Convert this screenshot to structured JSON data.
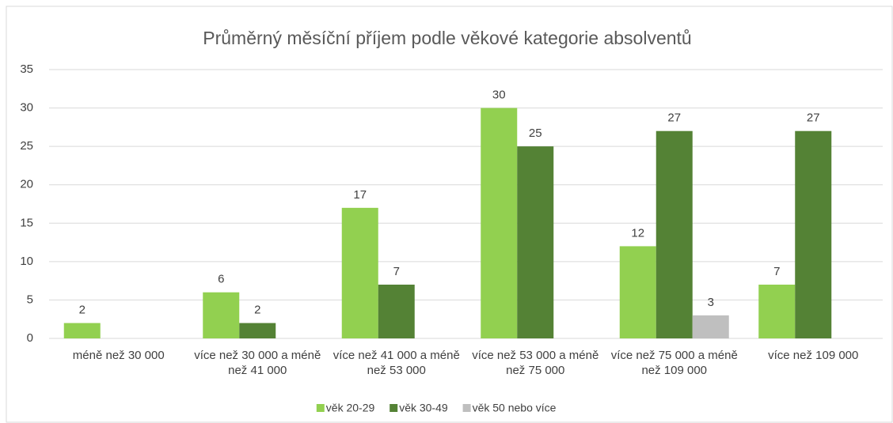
{
  "chart_data": {
    "type": "bar",
    "title": "Průměrný měsíční příjem podle věkové  kategorie absolventů",
    "categories": [
      "méně než 30 000",
      "více než 30 000 a méně než 41 000",
      "více než 41 000 a méně než 53 000",
      "více než 53 000 a méně než 75 000",
      "více než 75 000 a méně než 109 000",
      "více než 109 000"
    ],
    "series": [
      {
        "name": "věk 20-29",
        "color": "#92d050",
        "values": [
          2,
          6,
          17,
          30,
          12,
          7
        ]
      },
      {
        "name": "věk 30-49",
        "color": "#548235",
        "values": [
          null,
          2,
          7,
          25,
          27,
          27
        ]
      },
      {
        "name": "věk 50 nebo více",
        "color": "#bfbfbf",
        "values": [
          null,
          null,
          null,
          null,
          3,
          null
        ]
      }
    ],
    "ylim": [
      0,
      35
    ],
    "yticks": [
      0,
      5,
      10,
      15,
      20,
      25,
      30,
      35
    ],
    "grid": true,
    "legend": "bottom"
  }
}
